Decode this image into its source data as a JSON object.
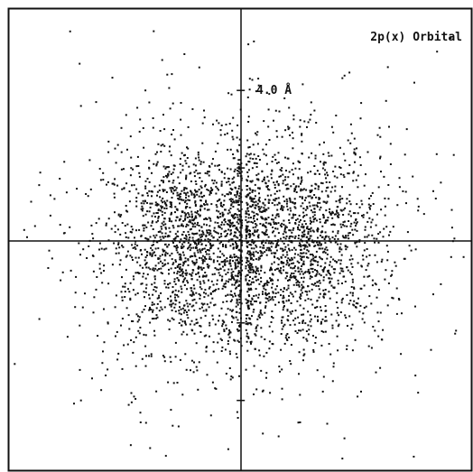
{
  "chart_data": {
    "type": "scatter",
    "title": "2p(x) Orbital",
    "annotations": [
      "4.0 Å"
    ],
    "scale_marker_value": 4.0,
    "scale_marker_unit": "Å",
    "y_ticks_angstrom": [
      4.0,
      2.0,
      -2.0,
      -4.0
    ],
    "xlim": [
      -6.2,
      6.0
    ],
    "ylim": [
      -5.8,
      6.1
    ],
    "grid": false,
    "legend": "none",
    "series": [
      {
        "lobe_centers": [
          [
            -1.4,
            0.0
          ],
          [
            1.4,
            0.0
          ]
        ],
        "sample_points": [
          [
            -4.3,
            3.6
          ],
          [
            -3.9,
            3.7
          ],
          [
            -2.6,
            4.0
          ],
          [
            -2.1,
            3.0
          ],
          [
            -3.4,
            2.5
          ],
          [
            -1.2,
            2.4
          ],
          [
            -0.8,
            1.6
          ],
          [
            -2.0,
            1.8
          ],
          [
            -1.5,
            1.0
          ],
          [
            -1.0,
            0.7
          ],
          [
            -0.6,
            0.3
          ],
          [
            -1.8,
            0.2
          ],
          [
            -2.4,
            -0.2
          ],
          [
            -1.3,
            -0.5
          ],
          [
            -0.7,
            -0.9
          ],
          [
            -2.0,
            -1.0
          ],
          [
            -1.1,
            -1.6
          ],
          [
            -3.0,
            -1.4
          ],
          [
            -1.5,
            -2.3
          ],
          [
            -2.6,
            -2.6
          ],
          [
            -3.6,
            -3.2
          ],
          [
            -4.3,
            -4.0
          ],
          [
            -2.9,
            -3.9
          ],
          [
            -5.4,
            -1.9
          ],
          [
            -5.8,
            0.4
          ],
          [
            -5.0,
            1.2
          ],
          [
            -4.0,
            0.3
          ],
          [
            -3.3,
            0.8
          ],
          [
            -2.8,
            -0.7
          ],
          [
            -1.0,
            0.0
          ],
          [
            -0.4,
            0.1
          ],
          [
            -0.9,
            -0.3
          ],
          [
            -1.6,
            0.5
          ],
          [
            -2.2,
            0.9
          ],
          [
            -0.5,
            -0.5
          ],
          [
            -1.7,
            -0.6
          ],
          [
            -2.5,
            1.4
          ],
          [
            -3.8,
            -0.6
          ],
          [
            -1.4,
            -1.1
          ],
          [
            -0.6,
            1.1
          ],
          [
            1.1,
            0.5
          ],
          [
            1.5,
            -0.2
          ],
          [
            0.6,
            0.4
          ],
          [
            0.9,
            -0.6
          ],
          [
            2.0,
            0.1
          ],
          [
            1.3,
            1.1
          ],
          [
            2.4,
            0.8
          ],
          [
            1.8,
            -1.0
          ],
          [
            0.7,
            -1.4
          ],
          [
            2.6,
            -0.6
          ],
          [
            3.2,
            0.4
          ],
          [
            1.0,
            2.0
          ],
          [
            2.0,
            2.6
          ],
          [
            2.9,
            1.9
          ],
          [
            3.6,
            2.8
          ],
          [
            4.3,
            3.0
          ],
          [
            4.5,
            4.2
          ],
          [
            5.1,
            5.0
          ],
          [
            3.8,
            4.6
          ],
          [
            1.6,
            3.2
          ],
          [
            1.5,
            -2.2
          ],
          [
            2.5,
            -1.8
          ],
          [
            3.3,
            -2.6
          ],
          [
            4.1,
            -1.4
          ],
          [
            3.0,
            -3.9
          ],
          [
            5.2,
            -1.0
          ],
          [
            5.6,
            -2.2
          ],
          [
            4.6,
            -3.8
          ],
          [
            5.0,
            1.4
          ],
          [
            5.8,
            -0.3
          ],
          [
            1.0,
            -3.2
          ],
          [
            2.2,
            -4.6
          ],
          [
            2.6,
            -5.5
          ],
          [
            0.9,
            0.1
          ],
          [
            0.5,
            -0.2
          ],
          [
            1.2,
            0.8
          ],
          [
            2.3,
            -0.3
          ],
          [
            1.7,
            0.3
          ],
          [
            3.4,
            -0.9
          ],
          [
            4.6,
            0.9
          ],
          [
            -3.1,
            1.6
          ],
          [
            -2.3,
            2.1
          ],
          [
            -0.3,
            2.8
          ],
          [
            -0.2,
            -2.8
          ],
          [
            -3.3,
            -0.2
          ]
        ]
      }
    ]
  }
}
